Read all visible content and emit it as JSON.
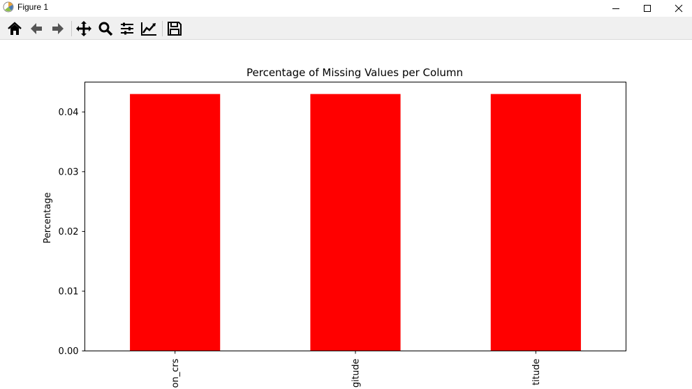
{
  "window": {
    "title": "Figure 1",
    "controls": [
      "minimize-icon",
      "maximize-icon",
      "close-icon"
    ]
  },
  "toolbar": {
    "buttons": [
      {
        "icon": "home-icon",
        "name": "Home"
      },
      {
        "icon": "back-arrow-icon",
        "name": "Back"
      },
      {
        "icon": "forward-arrow-icon",
        "name": "Forward"
      },
      {
        "icon": "pan-icon",
        "name": "Pan"
      },
      {
        "icon": "zoom-icon",
        "name": "Zoom"
      },
      {
        "icon": "subplots-icon",
        "name": "Configure subplots"
      },
      {
        "icon": "edit-axis-icon",
        "name": "Edit axis"
      },
      {
        "icon": "save-icon",
        "name": "Save"
      }
    ]
  },
  "chart_data": {
    "type": "bar",
    "title": "Percentage of Missing Values per Column",
    "xlabel": "",
    "ylabel": "Percentage",
    "categories": [
      "on_crs",
      "gitude",
      "titude"
    ],
    "values": [
      0.043,
      0.043,
      0.043
    ],
    "ylim": [
      0,
      0.045
    ],
    "yticks": [
      0.0,
      0.01,
      0.02,
      0.03,
      0.04
    ],
    "ytick_labels": [
      "0.00",
      "0.01",
      "0.02",
      "0.03",
      "0.04"
    ],
    "bar_color": "#ff0000",
    "grid": false,
    "legend": "none"
  }
}
